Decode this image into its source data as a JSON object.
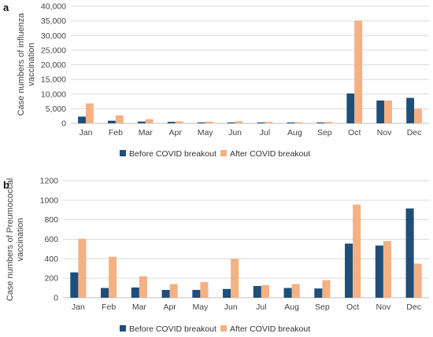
{
  "chart_data": [
    {
      "type": "bar",
      "panel": "a",
      "ylabel": "Case numbers of influenza vaccination",
      "ylabel_lines": [
        "Case numbers of influenza",
        "vaccination"
      ],
      "ylim": [
        0,
        40000
      ],
      "yticks": [
        "0",
        "5,000",
        "10,000",
        "15,000",
        "20,000",
        "25,000",
        "30,000",
        "35,000",
        "40,000"
      ],
      "grid": true,
      "legend_position": "bottom",
      "categories": [
        "Jan",
        "Feb",
        "Mar",
        "Apr",
        "May",
        "Jun",
        "Jul",
        "Aug",
        "Sep",
        "Oct",
        "Nov",
        "Dec"
      ],
      "series": [
        {
          "name": "Before COVID breakout",
          "color": "#1f4e79",
          "values": [
            2300,
            900,
            600,
            500,
            300,
            300,
            300,
            300,
            300,
            10200,
            7800,
            8700
          ]
        },
        {
          "name": "After COVID breakout",
          "color": "#f4b183",
          "values": [
            6800,
            2700,
            1400,
            700,
            600,
            700,
            500,
            400,
            500,
            35100,
            7800,
            5000
          ]
        }
      ]
    },
    {
      "type": "bar",
      "panel": "b",
      "ylabel": "Case numbers of Preumococcal vaccination",
      "ylabel_lines": [
        "Case numbers of Preumococcal",
        "vaccination"
      ],
      "ylim": [
        0,
        1200
      ],
      "yticks": [
        "0",
        "200",
        "400",
        "600",
        "800",
        "1000",
        "1200"
      ],
      "grid": true,
      "legend_position": "bottom",
      "categories": [
        "Jan",
        "Feb",
        "Mar",
        "Apr",
        "May",
        "Jun",
        "Jul",
        "Aug",
        "Sep",
        "Oct",
        "Nov",
        "Dec"
      ],
      "series": [
        {
          "name": "Before COVID breakout",
          "color": "#1f4e79",
          "values": [
            260,
            100,
            105,
            80,
            80,
            90,
            120,
            100,
            95,
            555,
            535,
            915
          ]
        },
        {
          "name": "After COVID breakout",
          "color": "#f4b183",
          "values": [
            605,
            420,
            220,
            140,
            160,
            400,
            130,
            140,
            180,
            955,
            580,
            350
          ]
        }
      ]
    }
  ]
}
